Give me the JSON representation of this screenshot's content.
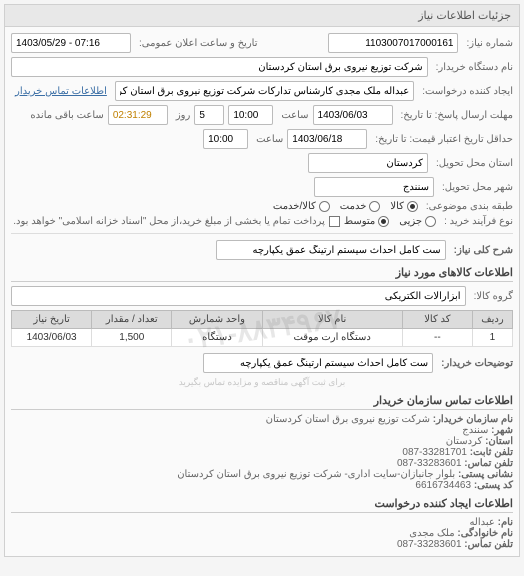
{
  "panel_title": "جزئیات اطلاعات نیاز",
  "announce": {
    "datetime_label": "تاریخ و ساعت اعلان عمومی:",
    "datetime_value": "1403/05/29 - 07:16"
  },
  "need_no": {
    "label": "شماره نیاز:",
    "value": "1103007017000161"
  },
  "buyer_org": {
    "label": "نام دستگاه خریدار:",
    "value": "شرکت توزیع نیروی برق استان کردستان"
  },
  "requester": {
    "label": "ایجاد کننده درخواست:",
    "value": "عبداله ملک مجدی کارشناس تدارکات شرکت توزیع نیروی برق استان کردستان",
    "contact_btn": "اطلاعات تماس خریدار"
  },
  "deadline": {
    "label": "مهلت ارسال پاسخ: تا تاریخ:",
    "date": "1403/06/03",
    "time_label": "ساعت",
    "time": "10:00",
    "day_label": "روز",
    "day": "5",
    "remain_label": "ساعت باقی مانده",
    "remain": "02:31:29"
  },
  "least_price": {
    "label": "حداقل تاریخ اعتبار قیمت: تا تاریخ:",
    "date": "1403/06/18",
    "time_label": "ساعت",
    "time": "10:00"
  },
  "delivery_province": {
    "label": "استان محل تحویل:",
    "value": "کردستان"
  },
  "delivery_city": {
    "label": "شهر محل تحویل:",
    "value": "سنندج"
  },
  "classification": {
    "label": "طبقه بندی موضوعی:",
    "options": [
      "کالا",
      "خدمت",
      "کالا/خدمت"
    ],
    "selected": 0
  },
  "purchase_type": {
    "label": "نوع فرآیند خرید :",
    "options": [
      "جزیی",
      "متوسط"
    ],
    "selected": 1,
    "note_label": "پرداخت تمام یا بخشی از مبلغ خرید،از محل \"اسناد خزانه اسلامی\" خواهد بود."
  },
  "desc": {
    "label": "شرح کلی نیاز:",
    "value": "ست کامل احداث سیستم ارتینگ عمق یکپارچه"
  },
  "goods_section_title": "اطلاعات کالاهای مورد نیاز",
  "group": {
    "label": "گروه کالا:",
    "value": "ابزارآلات الکتریکی"
  },
  "table": {
    "columns": [
      "ردیف",
      "کد کالا",
      "نام کالا",
      "واحد شمارش",
      "تعداد / مقدار",
      "تاریخ نیاز"
    ],
    "rows": [
      [
        "1",
        "--",
        "دستگاه ارت موقت",
        "دستگاه",
        "1,500",
        "1403/06/03"
      ]
    ],
    "widths": [
      "8%",
      "14%",
      "28%",
      "18%",
      "16%",
      "16%"
    ]
  },
  "buyer_desc": {
    "label": "توضیحات خریدار:",
    "value": "ست کامل احداث سیستم ارتینگ عمق یکپارچه"
  },
  "contact_section_title": "اطلاعات تماس سازمان خریدار",
  "contact": {
    "org_label": "نام سازمان خریدار:",
    "org": "شرکت توزیع نیروی برق استان کردستان",
    "city_label": "شهر:",
    "city": "سنندج",
    "province_label": "استان:",
    "province": "کردستان",
    "phone_label": "تلفن ثابت:",
    "phone": "087-33281701",
    "fax_label": "تلفن تماس:",
    "fax": "087-33283601",
    "postal_label": "نشانی پستی:",
    "postal": "بلوار جانبازان-سایت اداری- شرکت توزیع نیروی برق استان کردستان",
    "postcode_label": "کد پستی:",
    "postcode": "6616734463"
  },
  "creator_section_title": "اطلاعات ایجاد کننده درخواست",
  "creator": {
    "name_label": "نام:",
    "name": "عبداله",
    "family_label": "نام خانوادگی:",
    "family": "ملک مجدی",
    "phone_label": "تلفن تماس:",
    "phone": "087-33283601"
  },
  "watermark": "۰۲۱-۸۸۳۴۹۶۷",
  "watermark_sub": "برای ثبت آگهی مناقصه و مزایده تماس بگیرید"
}
